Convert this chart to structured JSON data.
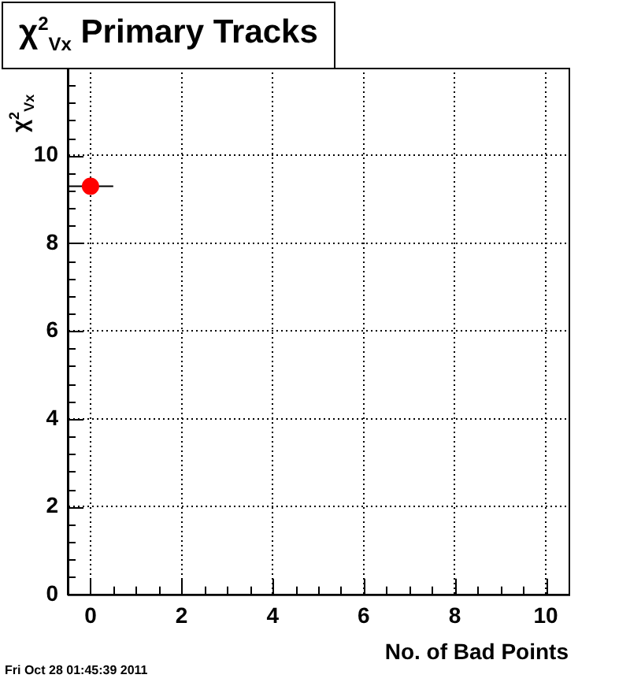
{
  "chart_data": {
    "type": "scatter",
    "title": "χ$^{2}$$_{Vx}$ Primary Tracks",
    "xlabel": "No. of Bad Points",
    "ylabel": "χ$^{2}$$_{Vx}$",
    "x": [
      0
    ],
    "values": [
      9.3
    ],
    "xerrors": [
      0.5
    ],
    "color": "#ff0000",
    "marker": "circle",
    "xlim": [
      -0.5,
      10.5
    ],
    "xticks": [
      0,
      2,
      4,
      6,
      8,
      10
    ],
    "ylim": [
      0,
      12
    ],
    "yticks": [
      0,
      2,
      4,
      6,
      8,
      10
    ],
    "grid": true,
    "annotations": [
      "Fri Oct 28 01:45:39 2011"
    ]
  }
}
